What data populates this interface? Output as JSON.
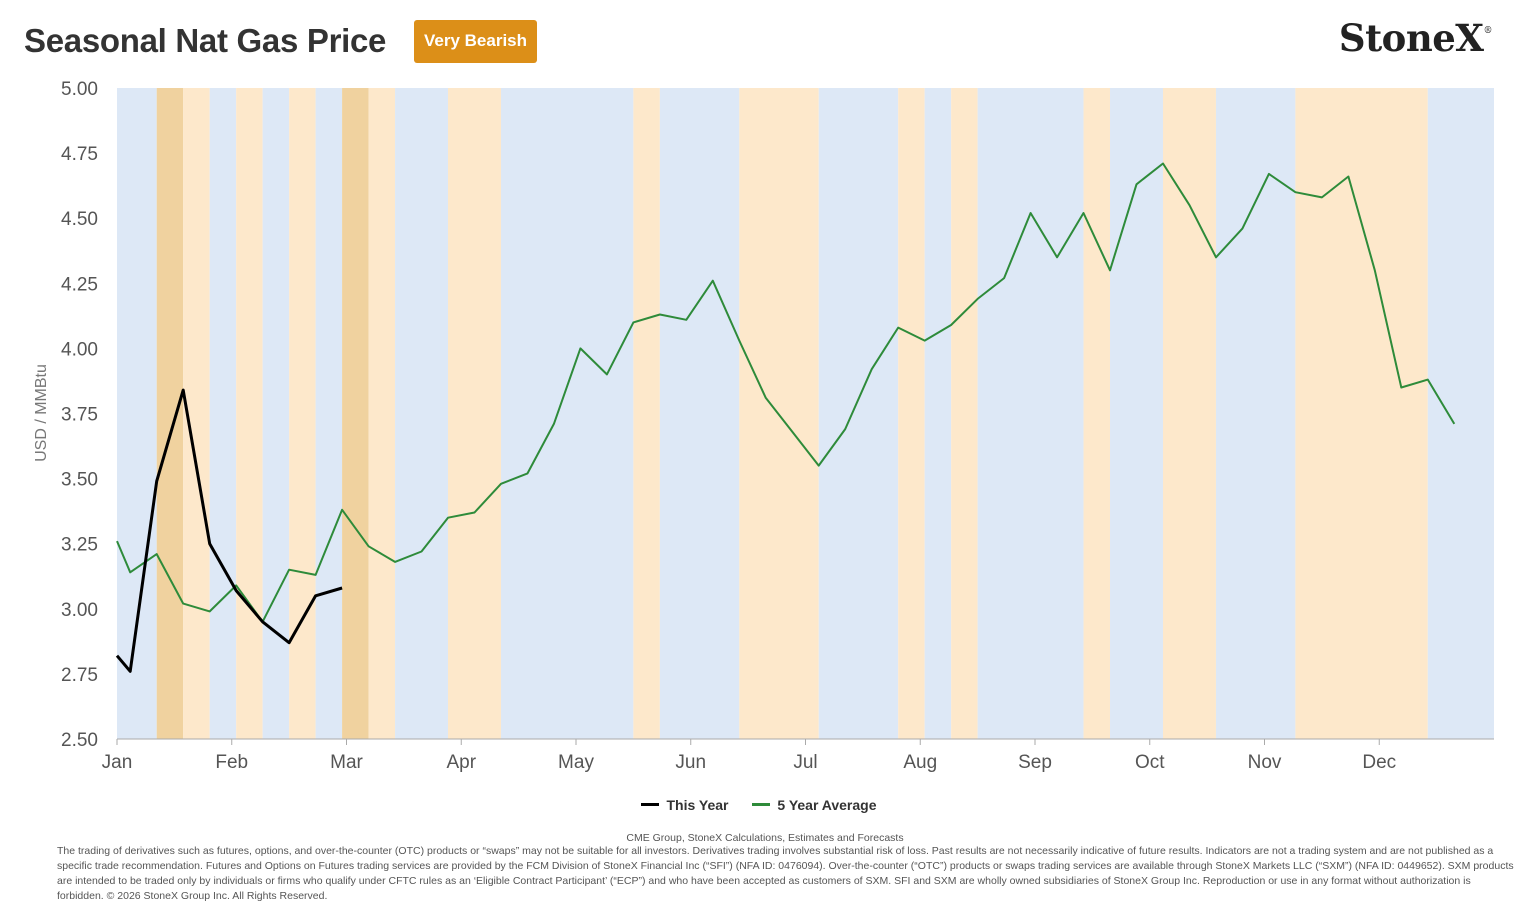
{
  "header": {
    "title": "Seasonal Nat Gas Price",
    "badge": "Very Bearish",
    "logo": "StoneX",
    "logo_mark": "®"
  },
  "colors": {
    "this_year": "#000000",
    "five_year": "#2e8b3a",
    "band_bearish": "#fde8cb",
    "band_very_bearish": "#f0d29f",
    "band_bullish": "#dde8f6",
    "badge": "#dc8f18"
  },
  "chart_data": {
    "type": "line",
    "title": "Seasonal Nat Gas Price",
    "ylabel": "USD / MMBtu",
    "xlabel": "",
    "ylim": [
      2.5,
      5.0
    ],
    "y_ticks": [
      "2.50",
      "2.75",
      "3.00",
      "3.25",
      "3.50",
      "3.75",
      "4.00",
      "4.25",
      "4.50",
      "4.75",
      "5.00"
    ],
    "x_ticks": [
      "Jan",
      "Feb",
      "Mar",
      "Apr",
      "May",
      "Jun",
      "Jul",
      "Aug",
      "Sep",
      "Oct",
      "Nov",
      "Dec"
    ],
    "grid": false,
    "legend_position": "bottom-center",
    "weeks": 52,
    "series": [
      {
        "name": "This Year",
        "color": "#000000",
        "points": [
          [
            0,
            2.82
          ],
          [
            0.5,
            2.76
          ],
          [
            1.5,
            3.49
          ],
          [
            2.5,
            3.84
          ],
          [
            3.5,
            3.25
          ],
          [
            4.5,
            3.07
          ],
          [
            5.5,
            2.95
          ],
          [
            6.5,
            2.87
          ],
          [
            7.5,
            3.05
          ],
          [
            8.5,
            3.08
          ]
        ]
      },
      {
        "name": "5 Year Average",
        "color": "#2e8b3a",
        "points": [
          [
            0,
            3.26
          ],
          [
            0.5,
            3.14
          ],
          [
            1.5,
            3.21
          ],
          [
            2.5,
            3.02
          ],
          [
            3.5,
            2.99
          ],
          [
            4.5,
            3.09
          ],
          [
            5.5,
            2.95
          ],
          [
            6.5,
            3.15
          ],
          [
            7.5,
            3.13
          ],
          [
            8.5,
            3.38
          ],
          [
            9.5,
            3.24
          ],
          [
            10.5,
            3.18
          ],
          [
            11.5,
            3.22
          ],
          [
            12.5,
            3.35
          ],
          [
            13.5,
            3.37
          ],
          [
            14.5,
            3.48
          ],
          [
            15.5,
            3.52
          ],
          [
            16.5,
            3.71
          ],
          [
            17.5,
            4.0
          ],
          [
            18.5,
            3.9
          ],
          [
            19.5,
            4.1
          ],
          [
            20.5,
            4.13
          ],
          [
            21.5,
            4.11
          ],
          [
            22.5,
            4.26
          ],
          [
            23.5,
            4.03
          ],
          [
            24.5,
            3.81
          ],
          [
            25.5,
            3.68
          ],
          [
            26.5,
            3.55
          ],
          [
            27.5,
            3.69
          ],
          [
            28.5,
            3.92
          ],
          [
            29.5,
            4.08
          ],
          [
            30.5,
            4.03
          ],
          [
            31.5,
            4.09
          ],
          [
            32.5,
            4.19
          ],
          [
            33.5,
            4.27
          ],
          [
            34.5,
            4.52
          ],
          [
            35.5,
            4.35
          ],
          [
            36.5,
            4.52
          ],
          [
            37.5,
            4.3
          ],
          [
            38.5,
            4.63
          ],
          [
            39.5,
            4.71
          ],
          [
            40.5,
            4.55
          ],
          [
            41.5,
            4.35
          ],
          [
            42.5,
            4.46
          ],
          [
            43.5,
            4.67
          ],
          [
            44.5,
            4.6
          ],
          [
            45.5,
            4.58
          ],
          [
            46.5,
            4.66
          ],
          [
            47.5,
            4.3
          ],
          [
            48.5,
            3.85
          ],
          [
            49.5,
            3.88
          ],
          [
            50.5,
            3.71
          ]
        ]
      }
    ],
    "bands": [
      {
        "start": 0,
        "end": 1.5,
        "kind": "bullish"
      },
      {
        "start": 1.5,
        "end": 2.5,
        "kind": "very_bearish"
      },
      {
        "start": 2.5,
        "end": 3.5,
        "kind": "bearish"
      },
      {
        "start": 3.5,
        "end": 4.5,
        "kind": "bullish"
      },
      {
        "start": 4.5,
        "end": 5.5,
        "kind": "bearish"
      },
      {
        "start": 5.5,
        "end": 6.5,
        "kind": "bullish"
      },
      {
        "start": 6.5,
        "end": 7.5,
        "kind": "bearish"
      },
      {
        "start": 7.5,
        "end": 8.5,
        "kind": "bullish"
      },
      {
        "start": 8.5,
        "end": 9.5,
        "kind": "very_bearish"
      },
      {
        "start": 9.5,
        "end": 10.5,
        "kind": "bearish"
      },
      {
        "start": 10.5,
        "end": 12.5,
        "kind": "bullish"
      },
      {
        "start": 12.5,
        "end": 14.5,
        "kind": "bearish"
      },
      {
        "start": 14.5,
        "end": 19.5,
        "kind": "bullish"
      },
      {
        "start": 19.5,
        "end": 20.5,
        "kind": "bearish"
      },
      {
        "start": 20.5,
        "end": 23.5,
        "kind": "bullish"
      },
      {
        "start": 23.5,
        "end": 26.5,
        "kind": "bearish"
      },
      {
        "start": 26.5,
        "end": 29.5,
        "kind": "bullish"
      },
      {
        "start": 29.5,
        "end": 30.5,
        "kind": "bearish"
      },
      {
        "start": 30.5,
        "end": 31.5,
        "kind": "bullish"
      },
      {
        "start": 31.5,
        "end": 32.5,
        "kind": "bearish"
      },
      {
        "start": 32.5,
        "end": 36.5,
        "kind": "bullish"
      },
      {
        "start": 36.5,
        "end": 37.5,
        "kind": "bearish"
      },
      {
        "start": 37.5,
        "end": 39.5,
        "kind": "bullish"
      },
      {
        "start": 39.5,
        "end": 41.5,
        "kind": "bearish"
      },
      {
        "start": 41.5,
        "end": 44.5,
        "kind": "bullish"
      },
      {
        "start": 44.5,
        "end": 49.5,
        "kind": "bearish"
      },
      {
        "start": 49.5,
        "end": 52,
        "kind": "bullish"
      }
    ]
  },
  "legend": {
    "items": [
      {
        "label": "This Year",
        "color": "#000000"
      },
      {
        "label": "5 Year Average",
        "color": "#2e8b3a"
      }
    ]
  },
  "footer": {
    "source": "CME Group, StoneX Calculations, Estimates and Forecasts",
    "disclaimer": "The trading of derivatives such as futures, options, and over-the-counter (OTC) products or “swaps” may not be suitable for all investors. Derivatives trading involves substantial risk of loss. Past results are not necessarily indicative of future results. Indicators are not a trading system and are not published as a specific trade recommendation. Futures and Options on Futures trading services are provided by the FCM Division of StoneX Financial Inc (“SFI”) (NFA ID: 0476094). Over-the-counter (“OTC”) products or swaps trading services are available through StoneX Markets LLC (“SXM”) (NFA ID: 0449652). SXM products are intended to be traded only by individuals or firms who qualify under CFTC rules as an ‘Eligible Contract Participant’ (“ECP”) and who have been accepted as customers of SXM. SFI and SXM are wholly owned subsidiaries of StoneX Group Inc. Reproduction or use in any format without authorization is forbidden. © 2026 StoneX Group Inc. All Rights Reserved."
  }
}
